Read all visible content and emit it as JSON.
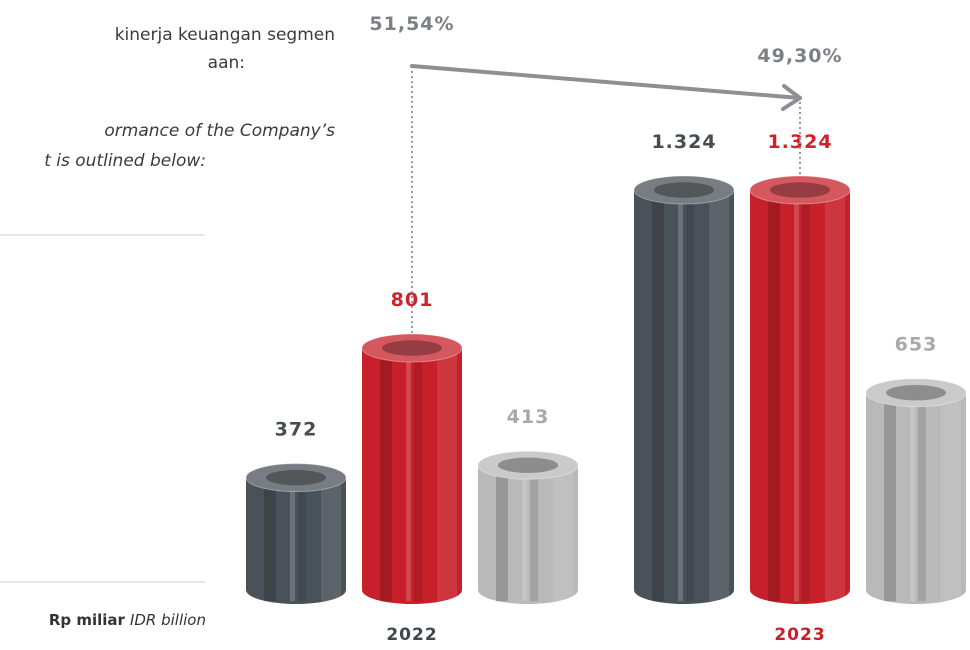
{
  "side_text": {
    "id_lines": [
      "kinerja     keuangan     segmen",
      "aan:"
    ],
    "en_lines": [
      "ormance  of  the  Company’s",
      "t is outlined below:"
    ],
    "unit": "Rp miliar",
    "unit_en": "IDR billion"
  },
  "chart_data": {
    "type": "bar",
    "categories": [
      "2022",
      "2023"
    ],
    "category_colors": [
      "#3f474e",
      "#c8202a"
    ],
    "series": [
      {
        "color": "#4a5259",
        "label_color": "#454c52",
        "values": [
          372,
          1324
        ],
        "value_labels": [
          "372",
          "1.324"
        ]
      },
      {
        "color": "#c8202a",
        "label_color": "#d0222c",
        "values": [
          801,
          1324
        ],
        "value_labels": [
          "801",
          "1.324"
        ]
      },
      {
        "color": "#b9b9b9",
        "label_color": "#a9a9a9",
        "values": [
          413,
          653
        ],
        "value_labels": [
          "413",
          "653"
        ]
      }
    ],
    "annotations": [
      "51,54%",
      "49,30%"
    ]
  }
}
